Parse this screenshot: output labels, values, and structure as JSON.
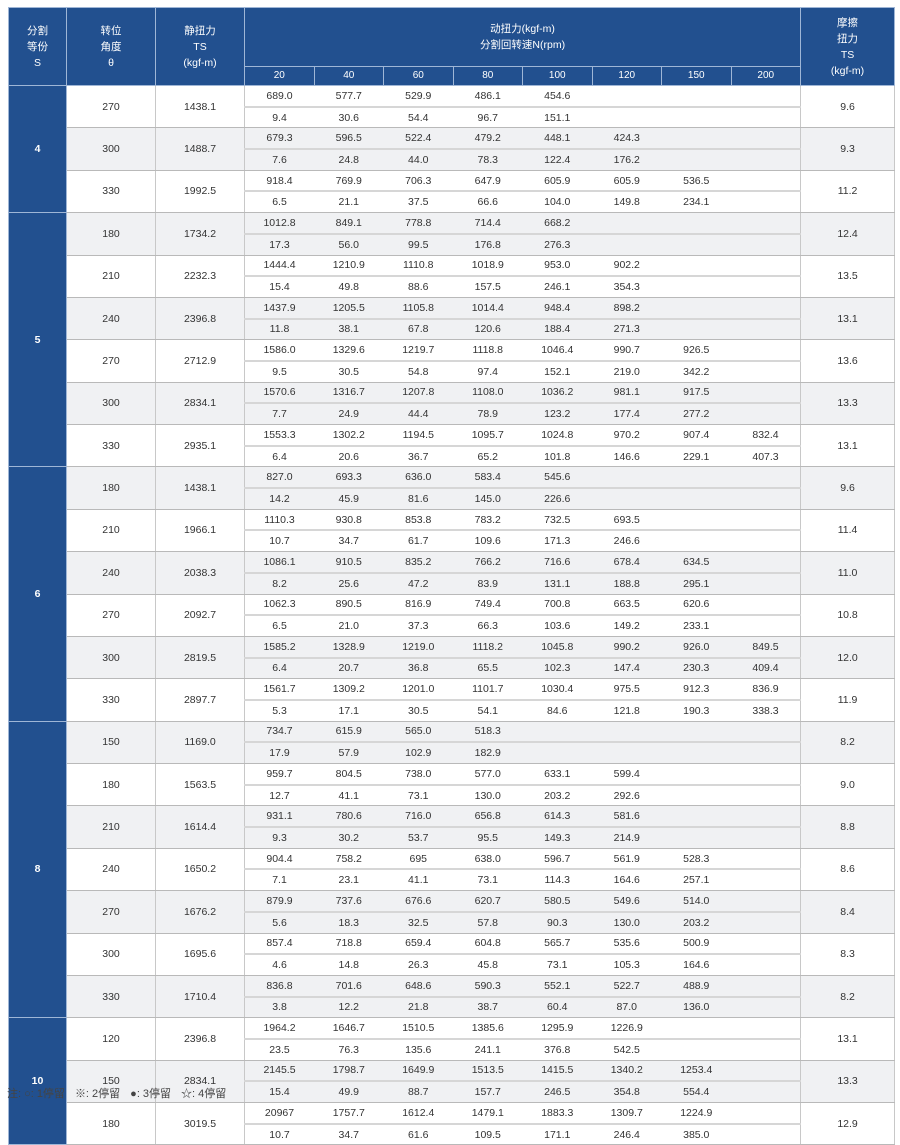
{
  "header": {
    "s": [
      "分割",
      "等份",
      "S"
    ],
    "angle": [
      "转位",
      "角度",
      "θ"
    ],
    "static": [
      "静扭力",
      "TS",
      "(kgf-m)"
    ],
    "dynamic": [
      "动扭力(kgf-m)",
      "分割回转速N(rpm)"
    ],
    "friction": [
      "摩擦",
      "扭力",
      "TS",
      "(kgf-m)"
    ],
    "speeds": [
      "20",
      "40",
      "60",
      "80",
      "100",
      "120",
      "150",
      "200"
    ]
  },
  "colors": {
    "header_bg": "#22508f",
    "shade": "#f0f1f3"
  },
  "groups": [
    {
      "s": "4",
      "rows": [
        {
          "angle": "270",
          "ts": "1438.1",
          "top": [
            "689.0",
            "577.7",
            "529.9",
            "486.1",
            "454.6"
          ],
          "bottom": [
            "9.4",
            "30.6",
            "54.4",
            "96.7",
            "151.1"
          ],
          "friction": "9.6"
        },
        {
          "angle": "300",
          "ts": "1488.7",
          "top": [
            "679.3",
            "596.5",
            "522.4",
            "479.2",
            "448.1",
            "424.3"
          ],
          "bottom": [
            "7.6",
            "24.8",
            "44.0",
            "78.3",
            "122.4",
            "176.2"
          ],
          "friction": "9.3"
        },
        {
          "angle": "330",
          "ts": "1992.5",
          "top": [
            "918.4",
            "769.9",
            "706.3",
            "647.9",
            "605.9",
            "605.9",
            "536.5"
          ],
          "bottom": [
            "6.5",
            "21.1",
            "37.5",
            "66.6",
            "104.0",
            "149.8",
            "234.1"
          ],
          "friction": "11.2"
        }
      ]
    },
    {
      "s": "5",
      "rows": [
        {
          "angle": "180",
          "ts": "1734.2",
          "top": [
            "1012.8",
            "849.1",
            "778.8",
            "714.4",
            "668.2"
          ],
          "bottom": [
            "17.3",
            "56.0",
            "99.5",
            "176.8",
            "276.3"
          ],
          "friction": "12.4"
        },
        {
          "angle": "210",
          "ts": "2232.3",
          "top": [
            "1444.4",
            "1210.9",
            "1110.8",
            "1018.9",
            "953.0",
            "902.2"
          ],
          "bottom": [
            "15.4",
            "49.8",
            "88.6",
            "157.5",
            "246.1",
            "354.3"
          ],
          "friction": "13.5"
        },
        {
          "angle": "240",
          "ts": "2396.8",
          "top": [
            "1437.9",
            "1205.5",
            "1105.8",
            "1014.4",
            "948.4",
            "898.2"
          ],
          "bottom": [
            "11.8",
            "38.1",
            "67.8",
            "120.6",
            "188.4",
            "271.3"
          ],
          "friction": "13.1"
        },
        {
          "angle": "270",
          "ts": "2712.9",
          "top": [
            "1586.0",
            "1329.6",
            "1219.7",
            "1118.8",
            "1046.4",
            "990.7",
            "926.5"
          ],
          "bottom": [
            "9.5",
            "30.5",
            "54.8",
            "97.4",
            "152.1",
            "219.0",
            "342.2"
          ],
          "friction": "13.6"
        },
        {
          "angle": "300",
          "ts": "2834.1",
          "top": [
            "1570.6",
            "1316.7",
            "1207.8",
            "1108.0",
            "1036.2",
            "981.1",
            "917.5"
          ],
          "bottom": [
            "7.7",
            "24.9",
            "44.4",
            "78.9",
            "123.2",
            "177.4",
            "277.2"
          ],
          "friction": "13.3"
        },
        {
          "angle": "330",
          "ts": "2935.1",
          "top": [
            "1553.3",
            "1302.2",
            "1194.5",
            "1095.7",
            "1024.8",
            "970.2",
            "907.4",
            "832.4"
          ],
          "bottom": [
            "6.4",
            "20.6",
            "36.7",
            "65.2",
            "101.8",
            "146.6",
            "229.1",
            "407.3"
          ],
          "friction": "13.1"
        }
      ]
    },
    {
      "s": "6",
      "rows": [
        {
          "angle": "180",
          "ts": "1438.1",
          "top": [
            "827.0",
            "693.3",
            "636.0",
            "583.4",
            "545.6"
          ],
          "bottom": [
            "14.2",
            "45.9",
            "81.6",
            "145.0",
            "226.6"
          ],
          "friction": "9.6"
        },
        {
          "angle": "210",
          "ts": "1966.1",
          "top": [
            "1110.3",
            "930.8",
            "853.8",
            "783.2",
            "732.5",
            "693.5"
          ],
          "bottom": [
            "10.7",
            "34.7",
            "61.7",
            "109.6",
            "171.3",
            "246.6"
          ],
          "friction": "11.4"
        },
        {
          "angle": "240",
          "ts": "2038.3",
          "top": [
            "1086.1",
            "910.5",
            "835.2",
            "766.2",
            "716.6",
            "678.4",
            "634.5"
          ],
          "bottom": [
            "8.2",
            "25.6",
            "47.2",
            "83.9",
            "131.1",
            "188.8",
            "295.1"
          ],
          "friction": "11.0"
        },
        {
          "angle": "270",
          "ts": "2092.7",
          "top": [
            "1062.3",
            "890.5",
            "816.9",
            "749.4",
            "700.8",
            "663.5",
            "620.6"
          ],
          "bottom": [
            "6.5",
            "21.0",
            "37.3",
            "66.3",
            "103.6",
            "149.2",
            "233.1"
          ],
          "friction": "10.8"
        },
        {
          "angle": "300",
          "ts": "2819.5",
          "top": [
            "1585.2",
            "1328.9",
            "1219.0",
            "1118.2",
            "1045.8",
            "990.2",
            "926.0",
            "849.5"
          ],
          "bottom": [
            "6.4",
            "20.7",
            "36.8",
            "65.5",
            "102.3",
            "147.4",
            "230.3",
            "409.4"
          ],
          "friction": "12.0"
        },
        {
          "angle": "330",
          "ts": "2897.7",
          "top": [
            "1561.7",
            "1309.2",
            "1201.0",
            "1101.7",
            "1030.4",
            "975.5",
            "912.3",
            "836.9"
          ],
          "bottom": [
            "5.3",
            "17.1",
            "30.5",
            "54.1",
            "84.6",
            "121.8",
            "190.3",
            "338.3"
          ],
          "friction": "11.9"
        }
      ]
    },
    {
      "s": "8",
      "rows": [
        {
          "angle": "150",
          "ts": "1169.0",
          "top": [
            "734.7",
            "615.9",
            "565.0",
            "518.3"
          ],
          "bottom": [
            "17.9",
            "57.9",
            "102.9",
            "182.9"
          ],
          "friction": "8.2"
        },
        {
          "angle": "180",
          "ts": "1563.5",
          "top": [
            "959.7",
            "804.5",
            "738.0",
            "577.0",
            "633.1",
            "599.4"
          ],
          "bottom": [
            "12.7",
            "41.1",
            "73.1",
            "130.0",
            "203.2",
            "292.6"
          ],
          "friction": "9.0"
        },
        {
          "angle": "210",
          "ts": "1614.4",
          "top": [
            "931.1",
            "780.6",
            "716.0",
            "656.8",
            "614.3",
            "581.6"
          ],
          "bottom": [
            "9.3",
            "30.2",
            "53.7",
            "95.5",
            "149.3",
            "214.9"
          ],
          "friction": "8.8"
        },
        {
          "angle": "240",
          "ts": "1650.2",
          "top": [
            "904.4",
            "758.2",
            "695",
            "638.0",
            "596.7",
            "561.9",
            "528.3"
          ],
          "bottom": [
            "7.1",
            "23.1",
            "41.1",
            "73.1",
            "114.3",
            "164.6",
            "257.1"
          ],
          "friction": "8.6"
        },
        {
          "angle": "270",
          "ts": "1676.2",
          "top": [
            "879.9",
            "737.6",
            "676.6",
            "620.7",
            "580.5",
            "549.6",
            "514.0"
          ],
          "bottom": [
            "5.6",
            "18.3",
            "32.5",
            "57.8",
            "90.3",
            "130.0",
            "203.2"
          ],
          "friction": "8.4"
        },
        {
          "angle": "300",
          "ts": "1695.6",
          "top": [
            "857.4",
            "718.8",
            "659.4",
            "604.8",
            "565.7",
            "535.6",
            "500.9"
          ],
          "bottom": [
            "4.6",
            "14.8",
            "26.3",
            "45.8",
            "73.1",
            "105.3",
            "164.6"
          ],
          "friction": "8.3"
        },
        {
          "angle": "330",
          "ts": "1710.4",
          "top": [
            "836.8",
            "701.6",
            "648.6",
            "590.3",
            "552.1",
            "522.7",
            "488.9"
          ],
          "bottom": [
            "3.8",
            "12.2",
            "21.8",
            "38.7",
            "60.4",
            "87.0",
            "136.0"
          ],
          "friction": "8.2"
        }
      ]
    },
    {
      "s": "10",
      "rows": [
        {
          "angle": "120",
          "ts": "2396.8",
          "top": [
            "1964.2",
            "1646.7",
            "1510.5",
            "1385.6",
            "1295.9",
            "1226.9"
          ],
          "bottom": [
            "23.5",
            "76.3",
            "135.6",
            "241.1",
            "376.8",
            "542.5"
          ],
          "friction": "13.1"
        },
        {
          "angle": "150",
          "ts": "2834.1",
          "top": [
            "2145.5",
            "1798.7",
            "1649.9",
            "1513.5",
            "1415.5",
            "1340.2",
            "1253.4"
          ],
          "bottom": [
            "15.4",
            "49.9",
            "88.7",
            "157.7",
            "246.5",
            "354.8",
            "554.4"
          ],
          "friction": "13.3"
        },
        {
          "angle": "180",
          "ts": "3019.5",
          "top": [
            "20967",
            "1757.7",
            "1612.4",
            "1479.1",
            "1883.3",
            "1309.7",
            "1224.9"
          ],
          "bottom": [
            "10.7",
            "34.7",
            "61.6",
            "109.5",
            "171.1",
            "246.4",
            "385.0"
          ],
          "friction": "12.9"
        }
      ]
    }
  ],
  "note": {
    "prefix": "注:",
    "items": [
      "○: 1停留",
      "※: 2停留",
      "●: 3停留",
      "☆: 4停留"
    ]
  }
}
